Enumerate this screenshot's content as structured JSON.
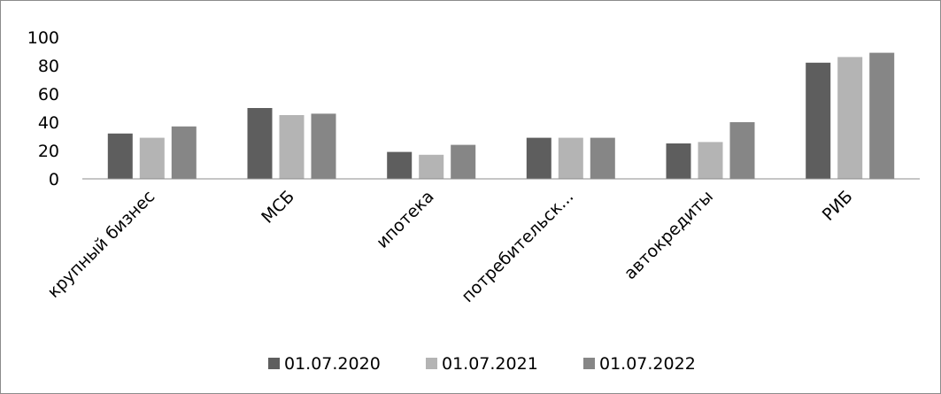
{
  "chart_data": {
    "type": "bar",
    "categories": [
      "крупный бизнес",
      "МСБ",
      "ипотека",
      "потребительск...",
      "автокредиты",
      "РИБ"
    ],
    "series": [
      {
        "name": "01.07.2020",
        "color": "#5e5e5e",
        "values": [
          32,
          50,
          19,
          29,
          25,
          82
        ]
      },
      {
        "name": "01.07.2021",
        "color": "#b4b4b4",
        "values": [
          29,
          45,
          17,
          29,
          26,
          86
        ]
      },
      {
        "name": "01.07.2022",
        "color": "#868686",
        "values": [
          37,
          46,
          24,
          29,
          40,
          89
        ]
      }
    ],
    "yticks": [
      "0",
      "20",
      "40",
      "60",
      "80",
      "100"
    ],
    "ylim": [
      0,
      100
    ],
    "grid": false,
    "legend_position": "bottom"
  }
}
